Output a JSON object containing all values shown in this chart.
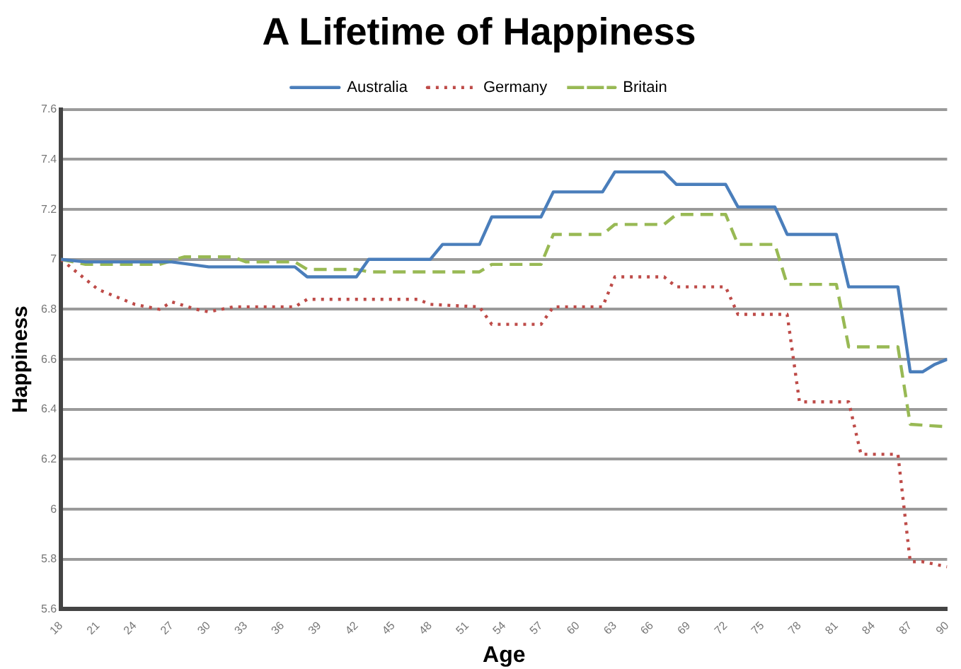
{
  "chart_data": {
    "type": "line",
    "title": "A Lifetime of Happiness",
    "xlabel": "Age",
    "ylabel": "Happiness",
    "xlim": [
      18,
      90
    ],
    "xticks": [
      18,
      21,
      24,
      27,
      30,
      33,
      36,
      39,
      42,
      45,
      48,
      51,
      54,
      57,
      60,
      63,
      66,
      69,
      72,
      75,
      78,
      81,
      84,
      87,
      90
    ],
    "ylim": [
      5.6,
      7.6
    ],
    "yticks": [
      5.6,
      5.8,
      6.0,
      6.2,
      6.4,
      6.6,
      6.8,
      7.0,
      7.2,
      7.4,
      7.6
    ],
    "grid": "y",
    "legend": "top",
    "marker": "none",
    "series": [
      {
        "name": "Australia",
        "color": "#4a7ebb",
        "line_style": "solid",
        "x": [
          18,
          20,
          27,
          30,
          37,
          38,
          42,
          43,
          48,
          49,
          52,
          53,
          57,
          58,
          62,
          63,
          67,
          68,
          72,
          73,
          76,
          77,
          81,
          82,
          86,
          87,
          88,
          89,
          90
        ],
        "values": [
          7.0,
          6.99,
          6.99,
          6.97,
          6.97,
          6.93,
          6.93,
          7.0,
          7.0,
          7.06,
          7.06,
          7.17,
          7.17,
          7.27,
          7.27,
          7.35,
          7.35,
          7.3,
          7.3,
          7.21,
          7.21,
          7.1,
          7.1,
          6.89,
          6.89,
          6.55,
          6.55,
          6.58,
          6.6
        ]
      },
      {
        "name": "Germany",
        "color": "#be4b48",
        "line_style": "dotted",
        "x": [
          18,
          21,
          24,
          26,
          27,
          29,
          30,
          32,
          37,
          38,
          47,
          48,
          52,
          53,
          57,
          58,
          62,
          63,
          67,
          68,
          72,
          73,
          77,
          78,
          82,
          83,
          86,
          87,
          88,
          90
        ],
        "values": [
          7.0,
          6.88,
          6.82,
          6.8,
          6.83,
          6.8,
          6.79,
          6.81,
          6.81,
          6.84,
          6.84,
          6.82,
          6.81,
          6.74,
          6.74,
          6.81,
          6.81,
          6.93,
          6.93,
          6.89,
          6.89,
          6.78,
          6.78,
          6.43,
          6.43,
          6.22,
          6.22,
          5.79,
          5.79,
          5.77
        ]
      },
      {
        "name": "Britain",
        "color": "#98b954",
        "line_style": "dashed",
        "x": [
          18,
          20,
          26,
          28,
          32,
          33,
          37,
          38,
          42,
          43,
          52,
          53,
          57,
          58,
          62,
          63,
          67,
          68,
          72,
          73,
          76,
          77,
          81,
          82,
          86,
          87,
          90
        ],
        "values": [
          7.0,
          6.98,
          6.98,
          7.01,
          7.01,
          6.99,
          6.99,
          6.96,
          6.96,
          6.95,
          6.95,
          6.98,
          6.98,
          7.1,
          7.1,
          7.14,
          7.14,
          7.18,
          7.18,
          7.06,
          7.06,
          6.9,
          6.9,
          6.65,
          6.65,
          6.34,
          6.33
        ]
      }
    ]
  }
}
